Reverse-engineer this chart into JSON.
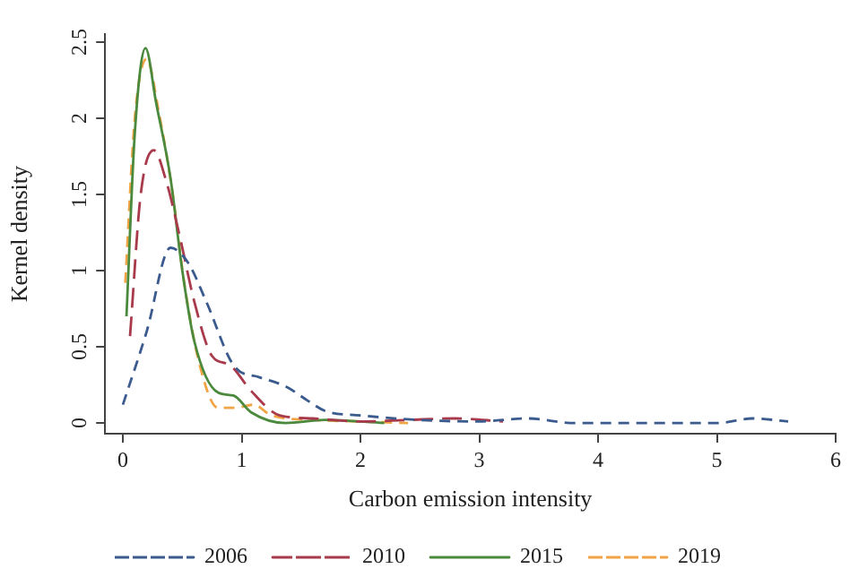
{
  "chart_data": {
    "type": "line",
    "xlabel": "Carbon emission intensity",
    "ylabel": "Kernel density",
    "xlim": [
      -0.15,
      6
    ],
    "ylim": [
      -0.07,
      2.55
    ],
    "xticks": [
      0,
      1,
      2,
      3,
      4,
      5,
      6
    ],
    "yticks": [
      0,
      0.5,
      1,
      1.5,
      2,
      2.5
    ],
    "grid": false,
    "legend": "bottom",
    "marker": "none",
    "series": [
      {
        "name": "2006",
        "color": "#3b5b8f",
        "line_style": "dashed",
        "x": [
          0,
          0.2,
          0.4,
          0.55,
          0.7,
          0.94,
          1.15,
          1.37,
          1.55,
          1.7,
          2,
          2.5,
          3,
          3.4,
          3.8,
          4.2,
          4.6,
          5,
          5.3,
          5.6
        ],
        "values": [
          0.12,
          0.6,
          1.15,
          1.05,
          0.8,
          0.37,
          0.3,
          0.24,
          0.15,
          0.08,
          0.05,
          0.02,
          0.01,
          0.03,
          0,
          0,
          0,
          0,
          0.03,
          0.01
        ]
      },
      {
        "name": "2010",
        "color": "#a83a4c",
        "line_style": "dashed",
        "x": [
          0.06,
          0.15,
          0.26,
          0.36,
          0.48,
          0.6,
          0.75,
          0.9,
          1.08,
          1.32,
          1.6,
          2,
          2.4,
          2.8,
          3.2
        ],
        "values": [
          0.57,
          1.5,
          1.79,
          1.6,
          1.22,
          0.8,
          0.44,
          0.38,
          0.21,
          0.05,
          0.03,
          0.01,
          0.02,
          0.03,
          0.01
        ]
      },
      {
        "name": "2015",
        "color": "#4b8a3c",
        "line_style": "solid",
        "x": [
          0.03,
          0.1,
          0.19,
          0.28,
          0.4,
          0.5,
          0.6,
          0.8,
          0.93,
          1.08,
          1.37,
          1.7,
          2.2
        ],
        "values": [
          0.7,
          1.9,
          2.46,
          2.1,
          1.61,
          1,
          0.54,
          0.2,
          0.18,
          0.07,
          0,
          0.02,
          0
        ]
      },
      {
        "name": "2019",
        "color": "#f0a444",
        "line_style": "dashed",
        "x": [
          0.02,
          0.1,
          0.2,
          0.3,
          0.42,
          0.52,
          0.65,
          0.8,
          0.95,
          1.1,
          1.25,
          1.6,
          2,
          2.4
        ],
        "values": [
          0.92,
          2,
          2.39,
          2.05,
          1.5,
          0.9,
          0.37,
          0.1,
          0.1,
          0.12,
          0.05,
          0.02,
          0.01,
          0
        ]
      }
    ]
  }
}
